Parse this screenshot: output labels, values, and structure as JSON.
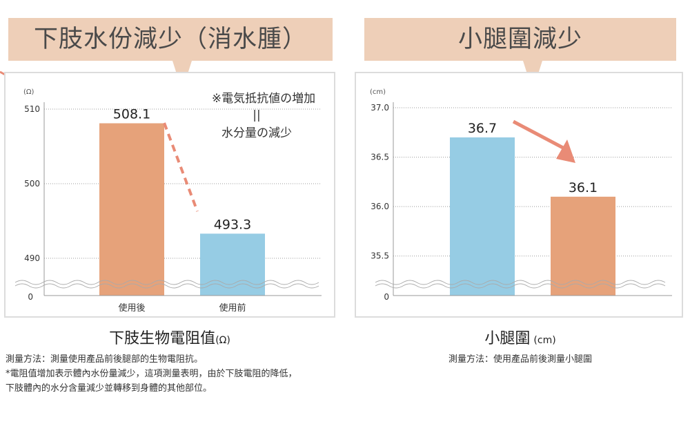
{
  "left": {
    "bubble_title": "下肢水份減少（消水腫）",
    "annotation_line1": "※電気抵抗値の増加",
    "annotation_line2": "||",
    "annotation_line3": "水分量の減少",
    "caption": "下肢生物電阻值",
    "caption_unit": "(Ω)",
    "notes": [
      "測量方法：測量使用產品前後腿部的生物電阻抗。",
      "*電阻值增加表示體內水份量減少，這項測量表明，由於下肢電阻的降低，",
      "下肢體內的水分含量減少並轉移到身體的其他部位。"
    ]
  },
  "right": {
    "bubble_title": "小腿圍減少",
    "caption": "小腿圍",
    "caption_unit": "(cm)",
    "notes": [
      "測量方法：使用產品前後測量小腿圍"
    ]
  },
  "colors": {
    "orange": "#e6a27a",
    "blue": "#96cce4",
    "bubble": "#eecfb8",
    "arrow": "#e98b76"
  },
  "chart_data": [
    {
      "type": "bar",
      "unit_label": "(Ω)",
      "categories": [
        "使用後",
        "使用前"
      ],
      "values": [
        508.1,
        493.3
      ],
      "value_labels": [
        "508.1",
        "493.3"
      ],
      "bar_colors": [
        "#e6a27a",
        "#96cce4"
      ],
      "yticks": [
        510,
        500,
        490
      ],
      "ytick_labels": [
        "510",
        "500",
        "490"
      ],
      "ylim": [
        485,
        510
      ],
      "baseline_label": "0",
      "broken_axis": true,
      "grid": true
    },
    {
      "type": "bar",
      "unit_label": "(cm)",
      "categories": [
        "",
        ""
      ],
      "values": [
        36.7,
        36.1
      ],
      "value_labels": [
        "36.7",
        "36.1"
      ],
      "bar_colors": [
        "#96cce4",
        "#e6a27a"
      ],
      "yticks": [
        37.0,
        36.5,
        36.0,
        35.5
      ],
      "ytick_labels": [
        "37.0",
        "36.5",
        "36.0",
        "35.5"
      ],
      "ylim": [
        35.1,
        37.0
      ],
      "baseline_label": "0",
      "broken_axis": true,
      "grid": true
    }
  ]
}
